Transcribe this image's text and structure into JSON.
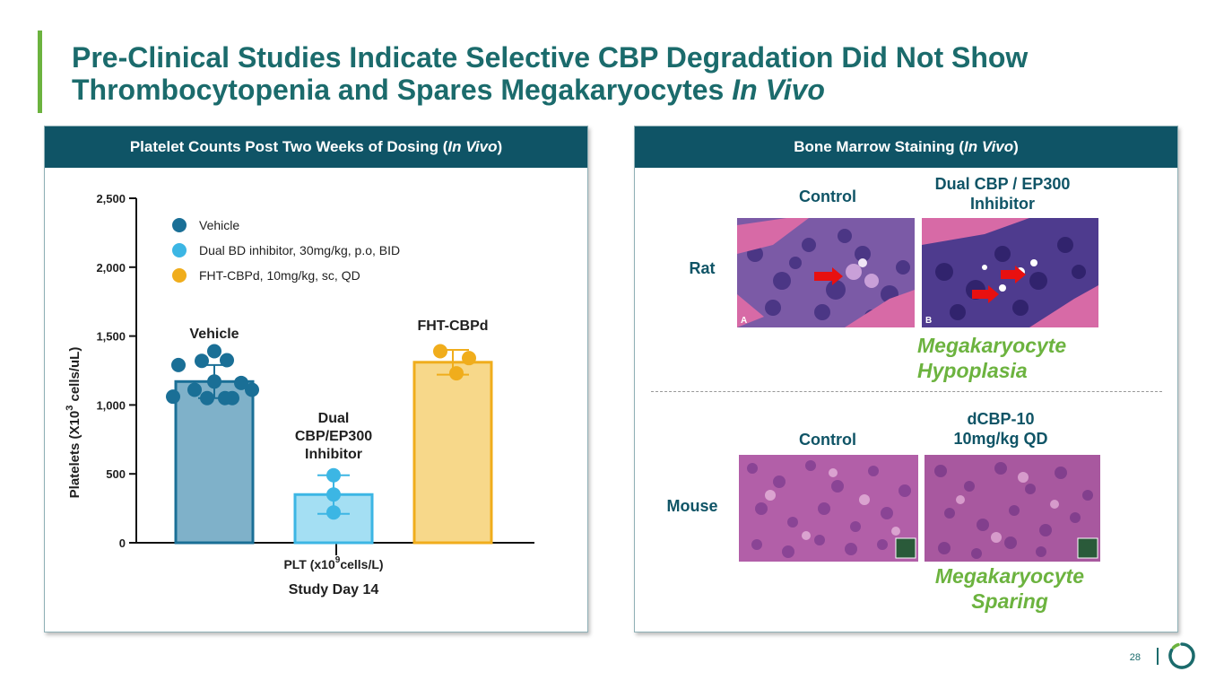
{
  "slide": {
    "title_line1": "Pre-Clinical Studies Indicate Selective CBP Degradation Did Not Show",
    "title_line2_plain": "Thrombocytopenia and Spares Megakaryocytes ",
    "title_line2_italic": "In Vivo",
    "page_number": "28"
  },
  "left_panel": {
    "header_plain": "Platelet Counts Post Two Weeks of Dosing (",
    "header_italic": "In Vivo",
    "header_close": ")"
  },
  "right_panel": {
    "header_plain": "Bone Marrow Staining (",
    "header_italic": "In Vivo",
    "header_close": ")",
    "rat_label": "Rat",
    "mouse_label": "Mouse",
    "rat_control_label": "Control",
    "rat_treatment_label_line1": "Dual CBP / EP300",
    "rat_treatment_label_line2": "Inhibitor",
    "mouse_control_label": "Control",
    "mouse_treatment_label_line1": "dCBP-10",
    "mouse_treatment_label_line2": "10mg/kg QD",
    "rat_note_line1": "Megakaryocyte",
    "rat_note_line2": "Hypoplasia",
    "mouse_note_line1": "Megakaryocyte",
    "mouse_note_line2": "Sparing",
    "image_a_letter": "A",
    "image_b_letter": "B"
  },
  "chart_data": {
    "type": "bar",
    "ylabel": "Platelets  (X10³ cells/uL)",
    "ylabel_base": "Platelets  (X10",
    "ylabel_sup": "3",
    "ylabel_tail": " cells/uL)",
    "xlabel_base": "PLT (x10",
    "xlabel_sup": "9",
    "xlabel_tail": "cells/L)",
    "xlabel_sub": "Study Day 14",
    "ylim": [
      0,
      2500
    ],
    "yticks": [
      0,
      500,
      1000,
      1500,
      2000,
      2500
    ],
    "ytick_labels": [
      "0",
      "500",
      "1,000",
      "1,500",
      "2,000",
      "2,500"
    ],
    "legend": [
      {
        "label": "Vehicle",
        "color": "#1a6f96"
      },
      {
        "label": "Dual BD inhibitor, 30mg/kg, p.o, BID",
        "color": "#3cb6e4"
      },
      {
        "label": "FHT-CBPd, 10mg/kg, sc, QD",
        "color": "#f0ad1c"
      }
    ],
    "series": [
      {
        "name": "Vehicle",
        "label_lines": [
          "Vehicle"
        ],
        "mean": 1170,
        "sd": 120,
        "bar_fill": "#7fb1c9",
        "bar_stroke": "#1a6f96",
        "point_color": "#1a6f96",
        "points": [
          1390,
          1320,
          1325,
          1290,
          1170,
          1160,
          1110,
          1110,
          1060,
          1050,
          1050,
          1050
        ]
      },
      {
        "name": "Dual CBP/EP300 Inhibitor",
        "label_lines": [
          "Dual",
          "CBP/EP300",
          "Inhibitor"
        ],
        "mean": 350,
        "sd": 140,
        "bar_fill": "#a4dff3",
        "bar_stroke": "#3cb6e4",
        "point_color": "#3cb6e4",
        "points": [
          490,
          350,
          220
        ]
      },
      {
        "name": "FHT-CBPd",
        "label_lines": [
          "FHT-CBPd"
        ],
        "mean": 1310,
        "sd": 90,
        "bar_fill": "#f7d88a",
        "bar_stroke": "#f0ad1c",
        "point_color": "#f0ad1c",
        "points": [
          1390,
          1340,
          1230
        ]
      }
    ]
  },
  "colors": {
    "brand_teal": "#1b6b6c",
    "header_bg": "#0f5466",
    "accent_green": "#6cb33f",
    "arrow_red": "#e81010"
  }
}
